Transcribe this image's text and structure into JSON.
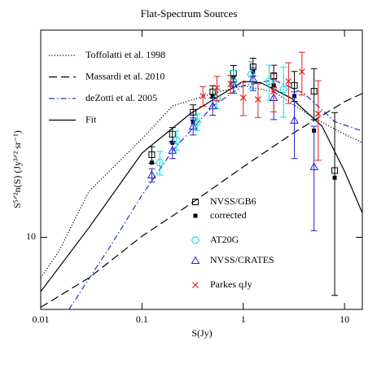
{
  "chart_data": {
    "type": "line",
    "title": "Flat-Spectrum Sources",
    "x_label": "S(Jy)",
    "y_label": "S⁵ᐟ²n(S) (Jy³ᐟ² sr⁻¹)",
    "log_x": true,
    "log_y": true,
    "xlim": [
      0.01,
      15
    ],
    "ylim": [
      5.3,
      62
    ],
    "xticks": [
      0.01,
      0.1,
      1,
      10
    ],
    "yticks": [
      10
    ],
    "series": [
      {
        "name": "Toffolatti et al. 1998",
        "kind": "line",
        "style": "dotted",
        "color": "#000000",
        "x": [
          0.01,
          0.015,
          0.03,
          0.1,
          0.2,
          0.5,
          1,
          2,
          5,
          10,
          15
        ],
        "values": [
          7.0,
          8.8,
          15,
          23.8,
          31.8,
          35.5,
          38,
          36,
          28.6,
          24.8,
          23
        ]
      },
      {
        "name": "Massardi et al. 2010",
        "kind": "line",
        "style": "dashed",
        "color": "#000000",
        "x": [
          0.01,
          0.03,
          0.1,
          0.3,
          1,
          3,
          10,
          15
        ],
        "values": [
          5.4,
          7,
          10.1,
          13.4,
          18.6,
          24.8,
          33,
          35.5
        ]
      },
      {
        "name": "deZotti et al. 2005",
        "kind": "line",
        "style": "dashdot",
        "color": "#2233cc",
        "x": [
          0.019,
          0.05,
          0.1,
          0.2,
          0.5,
          1,
          2,
          4,
          8,
          15
        ],
        "values": [
          5.3,
          9.4,
          14.5,
          21.4,
          31.8,
          38,
          40,
          35.5,
          27.7,
          25.5
        ]
      },
      {
        "name": "Fit",
        "kind": "line",
        "style": "solid",
        "color": "#000000",
        "x": [
          0.01,
          0.03,
          0.1,
          0.3,
          0.6,
          1,
          1.5,
          3,
          6,
          10,
          15
        ],
        "values": [
          6.2,
          10.9,
          21,
          29.7,
          35,
          39.5,
          39,
          34,
          26.6,
          17.9,
          12.4
        ]
      },
      {
        "name": "NVSS/GB6",
        "kind": "points",
        "marker": "square-open",
        "color": "#000000",
        "x": [
          0.125,
          0.2,
          0.32,
          0.5,
          0.8,
          1.25,
          2,
          3.2,
          5,
          8
        ],
        "values": [
          20.7,
          24.8,
          30.1,
          36,
          42.4,
          44.9,
          41.5,
          38.1,
          36.2,
          18
        ],
        "errors": [
          1.5,
          1.5,
          2,
          2,
          3,
          3.5,
          4,
          5,
          8,
          12
        ]
      },
      {
        "name": "corrected",
        "kind": "points",
        "marker": "square-filled",
        "color": "#000000",
        "x": [
          0.125,
          0.2,
          0.32,
          0.5,
          0.8,
          1.25,
          2,
          3.2,
          5,
          8
        ],
        "values": [
          19.3,
          23,
          27.6,
          34.7,
          40.9,
          43,
          38.1,
          34.7,
          25.6,
          16.9
        ]
      },
      {
        "name": "AT20G",
        "kind": "points",
        "marker": "hexagon",
        "color": "#00dddd",
        "x": [
          0.15,
          0.22,
          0.35,
          0.55,
          0.8,
          1.2,
          1.8,
          2.5
        ],
        "values": [
          19.3,
          23.5,
          27.6,
          34,
          39.5,
          42,
          39.5,
          36.8
        ],
        "errors": [
          2,
          2,
          2,
          3,
          4,
          5,
          6,
          8
        ]
      },
      {
        "name": "NVSS/CRATES",
        "kind": "points",
        "marker": "triangle",
        "color": "#2222cc",
        "x": [
          0.125,
          0.2,
          0.32,
          0.5,
          0.8,
          1.25,
          2,
          3.2,
          5
        ],
        "values": [
          17.3,
          21.5,
          26.6,
          31.8,
          38.6,
          40.4,
          34.2,
          28,
          18.6
        ],
        "errors": [
          1,
          1.5,
          2,
          2.5,
          3,
          4,
          6,
          8,
          8
        ]
      },
      {
        "name": "Parkes qJy",
        "kind": "points",
        "marker": "cross",
        "color": "#e02020",
        "x": [
          0.4,
          0.55,
          0.75,
          1,
          1.4,
          2,
          2.8,
          3.8,
          5.5
        ],
        "values": [
          34.7,
          37.3,
          38.6,
          34.2,
          33.7,
          36.2,
          39.5,
          43,
          29.7
        ],
        "errors": [
          3,
          4,
          3,
          5,
          5,
          6,
          7,
          8,
          10
        ]
      }
    ]
  }
}
